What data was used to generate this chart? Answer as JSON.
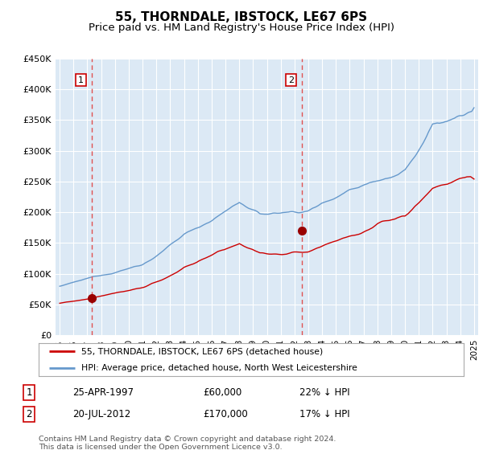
{
  "title": "55, THORNDALE, IBSTOCK, LE67 6PS",
  "subtitle": "Price paid vs. HM Land Registry's House Price Index (HPI)",
  "title_fontsize": 11,
  "subtitle_fontsize": 9.5,
  "ylim": [
    0,
    450000
  ],
  "yticks": [
    0,
    50000,
    100000,
    150000,
    200000,
    250000,
    300000,
    350000,
    400000,
    450000
  ],
  "ytick_labels": [
    "£0",
    "£50K",
    "£100K",
    "£150K",
    "£200K",
    "£250K",
    "£300K",
    "£350K",
    "£400K",
    "£450K"
  ],
  "xlim_start": 1994.7,
  "xlim_end": 2025.3,
  "background_color": "#dce9f5",
  "plot_bg_color": "#dce9f5",
  "grid_color": "#ffffff",
  "sale1_year": 1997.32,
  "sale1_price": 60000,
  "sale1_label": "1",
  "sale2_year": 2012.55,
  "sale2_price": 170000,
  "sale2_label": "2",
  "red_line_color": "#cc0000",
  "blue_line_color": "#6699cc",
  "dashed_color": "#e05050",
  "marker_color": "#990000",
  "legend_label_red": "55, THORNDALE, IBSTOCK, LE67 6PS (detached house)",
  "legend_label_blue": "HPI: Average price, detached house, North West Leicestershire",
  "footnote": "Contains HM Land Registry data © Crown copyright and database right 2024.\nThis data is licensed under the Open Government Licence v3.0.",
  "table_rows": [
    [
      "1",
      "25-APR-1997",
      "£60,000",
      "22% ↓ HPI"
    ],
    [
      "2",
      "20-JUL-2012",
      "£170,000",
      "17% ↓ HPI"
    ]
  ]
}
